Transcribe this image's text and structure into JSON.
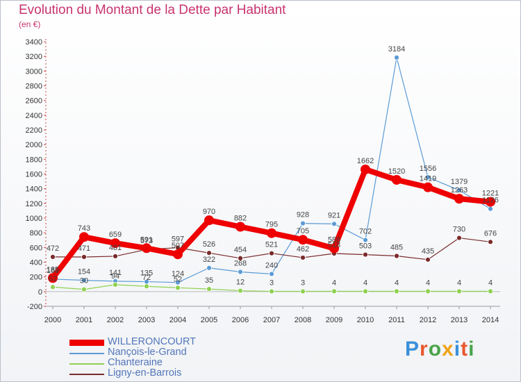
{
  "title": "Evolution du Montant de la Dette par Habitant",
  "subtitle": "(en €)",
  "logo": {
    "text": "Proxiti",
    "colors": [
      "#3a8fd9",
      "#e8582f",
      "#4aa34a",
      "#f0a21a",
      "#3a8fd9",
      "#e8582f",
      "#4aa34a"
    ]
  },
  "chart_data": {
    "type": "line",
    "title": "Evolution du Montant de la Dette par Habitant",
    "subtitle": "(en €)",
    "x": [
      "2000",
      "2001",
      "2002",
      "2003",
      "2004",
      "2005",
      "2006",
      "2007",
      "2008",
      "2009",
      "2010",
      "2011",
      "2012",
      "2013",
      "2014"
    ],
    "y_ticks": [
      "-200",
      "0",
      "200",
      "400",
      "600",
      "800",
      "1000",
      "1200",
      "1400",
      "1600",
      "1800",
      "2000",
      "2200",
      "2400",
      "2600",
      "2800",
      "3000",
      "3200",
      "3400"
    ],
    "ylim": [
      -200,
      3400
    ],
    "grid": false,
    "legend_position": "bottom-left",
    "series": [
      {
        "name": "WILLERONCOURT",
        "color": "#ee0000",
        "values": [
          185,
          743,
          659,
          591,
          507,
          970,
          882,
          795,
          705,
          588,
          1662,
          1520,
          1419,
          1263,
          1221
        ],
        "labels": [
          "185",
          "743",
          "659",
          "591",
          "507",
          "970",
          "882",
          "795",
          "705",
          "588",
          "1662",
          "1520",
          "1419",
          "1263",
          "1221"
        ]
      },
      {
        "name": "Nançois-le-Grand",
        "color": "#5b9bd5",
        "values": [
          169,
          154,
          141,
          135,
          124,
          322,
          268,
          240,
          928,
          921,
          702,
          3184,
          1556,
          1379,
          1126
        ],
        "labels": [
          "169",
          "154",
          "141",
          "135",
          "124",
          "322",
          "268",
          "240",
          "928",
          "921",
          "702",
          "3184",
          "1556",
          "1379",
          "1126"
        ]
      },
      {
        "name": "Chanteraine",
        "color": "#8fd150",
        "values": [
          62,
          30,
          94,
          72,
          52,
          35,
          12,
          3,
          3,
          4,
          4,
          4,
          4,
          4,
          4
        ],
        "labels": [
          "62",
          "30",
          "94",
          "72",
          "52",
          "35",
          "12",
          "3",
          "3",
          "4",
          "4",
          "4",
          "4",
          "4",
          "4"
        ]
      },
      {
        "name": "Ligny-en-Barrois",
        "color": "#7a2a2a",
        "values": [
          472,
          471,
          481,
          573,
          597,
          526,
          454,
          521,
          462,
          518,
          503,
          485,
          435,
          730,
          676
        ],
        "labels": [
          "472",
          "471",
          "481",
          "573",
          "597",
          "526",
          "454",
          "521",
          "462",
          "518",
          "503",
          "485",
          "435",
          "730",
          "676"
        ]
      }
    ]
  }
}
